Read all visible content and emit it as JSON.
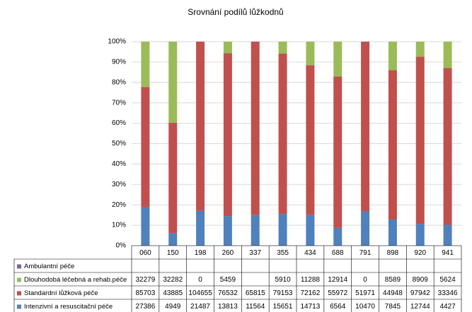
{
  "chart_data": {
    "type": "stacked_percent_bar",
    "title": "Srovnání podílů lůžkodnů",
    "categories": [
      "060",
      "150",
      "198",
      "260",
      "337",
      "355",
      "434",
      "688",
      "791",
      "898",
      "920",
      "941"
    ],
    "series": [
      {
        "name": "Ambulantní péče",
        "color": "#8064a2",
        "values": [
          null,
          null,
          null,
          null,
          null,
          null,
          null,
          null,
          null,
          null,
          null,
          null
        ]
      },
      {
        "name": "Dlouhodobá léčebná a rehab.péče",
        "color": "#9bbb59",
        "values": [
          32279,
          32282,
          0,
          5459,
          null,
          5910,
          11288,
          12914,
          0,
          8589,
          8909,
          5624
        ]
      },
      {
        "name": "Standardní lůžková péče",
        "color": "#c0504d",
        "values": [
          85703,
          43885,
          104655,
          76532,
          65815,
          79153,
          72162,
          55972,
          51971,
          44948,
          97942,
          33346
        ]
      },
      {
        "name": "Intenzivní a resuscitační péče",
        "color": "#4f81bd",
        "values": [
          27386,
          4949,
          21487,
          13813,
          11564,
          15651,
          14713,
          6564,
          10470,
          7845,
          12744,
          4427
        ]
      }
    ],
    "ylim": [
      0,
      100
    ],
    "yticks": [
      {
        "value": 0,
        "label": "0%"
      },
      {
        "value": 10,
        "label": "10%"
      },
      {
        "value": 20,
        "label": "20%"
      },
      {
        "value": 30,
        "label": "30%"
      },
      {
        "value": 40,
        "label": "40%"
      },
      {
        "value": 50,
        "label": "50%"
      },
      {
        "value": 60,
        "label": "60%"
      },
      {
        "value": 70,
        "label": "70%"
      },
      {
        "value": 80,
        "label": "80%"
      },
      {
        "value": 90,
        "label": "90%"
      },
      {
        "value": 100,
        "label": "100%"
      }
    ],
    "grid": true
  }
}
